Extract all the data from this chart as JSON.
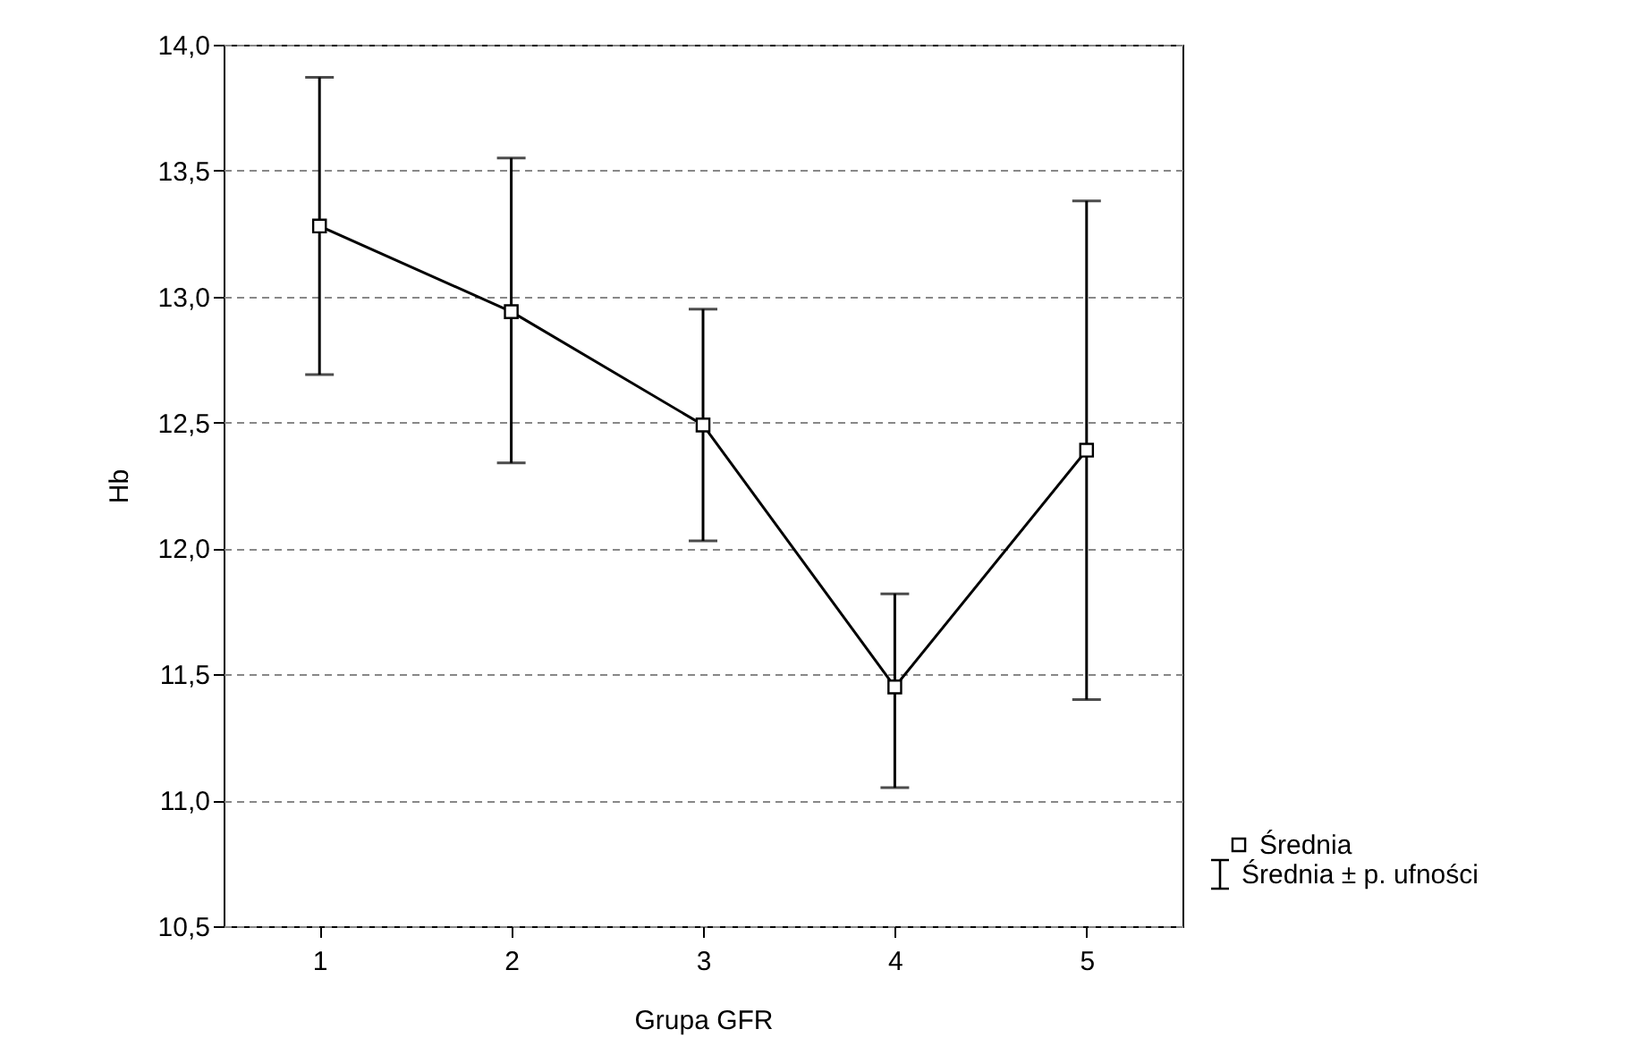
{
  "chart_data": {
    "type": "line",
    "xlabel": "Grupa GFR",
    "ylabel": "Hb",
    "categories": [
      "1",
      "2",
      "3",
      "4",
      "5"
    ],
    "series": [
      {
        "name": "Średnia",
        "color": "#000000",
        "values": [
          13.28,
          12.94,
          12.49,
          11.45,
          12.39
        ],
        "errors": [
          [
            12.69,
            13.87
          ],
          [
            12.34,
            13.55
          ],
          [
            12.03,
            12.95
          ],
          [
            11.05,
            11.82
          ],
          [
            11.4,
            13.38
          ]
        ]
      }
    ],
    "ylim": [
      10.5,
      14.0
    ],
    "yticks": [
      {
        "value": 10.5,
        "label": "10,5"
      },
      {
        "value": 11.0,
        "label": "11,0"
      },
      {
        "value": 11.5,
        "label": "11,5"
      },
      {
        "value": 12.0,
        "label": "12,0"
      },
      {
        "value": 12.5,
        "label": "12,5"
      },
      {
        "value": 13.0,
        "label": "13,0"
      },
      {
        "value": 13.5,
        "label": "13,5"
      },
      {
        "value": 14.0,
        "label": "14,0"
      }
    ],
    "grid": "y",
    "marker": "square",
    "line_style": "solid",
    "legend": "bottom right",
    "annotations": [
      "Średnia ± p. ufności"
    ]
  }
}
